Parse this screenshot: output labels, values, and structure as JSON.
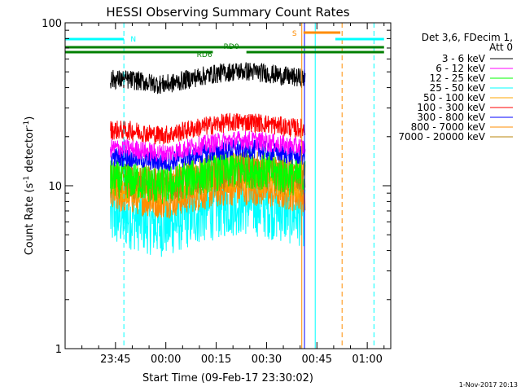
{
  "chart_data": {
    "type": "line",
    "title": "HESSI Observing Summary Count Rates",
    "xlabel": "Start Time (09-Feb-17 23:30:02)",
    "ylabel_main": "Count Rate (s",
    "ylabel_sup": "-1",
    "ylabel_mid": " detector",
    "ylabel_end": ")",
    "yscale": "log",
    "ylim": [
      1,
      100
    ],
    "y_ticks": [
      "1",
      "10",
      "100"
    ],
    "x_ticks": [
      "23:45",
      "00:00",
      "00:15",
      "00:30",
      "00:45",
      "01:00"
    ],
    "x_tick_minutes": [
      15,
      30,
      45,
      60,
      75,
      90
    ],
    "xlim_minutes": [
      0,
      97
    ],
    "data_start_minutes": 13.5,
    "data_end_minutes": 71.5,
    "legend_header": [
      "Det 3,6, FDecim 1,",
      "Att 0"
    ],
    "series": [
      {
        "name": "3 - 6 keV",
        "color": "#000000",
        "level": 45,
        "amp": 0.12,
        "noise": 0.06
      },
      {
        "name": "6 - 12 keV",
        "color": "#ff00ff",
        "level": 17,
        "amp": 0.12,
        "noise": 0.06
      },
      {
        "name": "12 - 25 keV",
        "color": "#00ff00",
        "level": 11,
        "amp": 0.15,
        "noise": 0.12
      },
      {
        "name": "25 - 50 keV",
        "color": "#00ffff",
        "level": 6.5,
        "amp": 0.2,
        "noise": 0.2
      },
      {
        "name": "50 - 100 keV",
        "color": "#ffa500",
        "level": 10.5,
        "amp": 0.14,
        "noise": 0.12
      },
      {
        "name": "100 - 300 keV",
        "color": "#ff0000",
        "level": 22,
        "amp": 0.12,
        "noise": 0.06
      },
      {
        "name": "300 - 800 keV",
        "color": "#0000ff",
        "level": 15,
        "amp": 0.12,
        "noise": 0.06
      },
      {
        "name": "800 - 7000 keV",
        "color": "#ff8c00",
        "level": 8.5,
        "amp": 0.12,
        "noise": 0.1
      },
      {
        "name": "7000 - 20000 keV",
        "color": "#b8860b",
        "level": 11,
        "amp": 0.14,
        "noise": 0.12
      }
    ],
    "flags": [
      {
        "label": "N",
        "color": "#00ffff",
        "segments": [
          [
            0,
            17.5
          ],
          [
            80.5,
            95
          ]
        ]
      },
      {
        "label": "RD0",
        "color": "#008000",
        "segments": [
          [
            0,
            95
          ]
        ]
      },
      {
        "label": "RD6",
        "color": "#008000",
        "segments": [
          [
            0,
            44
          ],
          [
            54,
            95
          ]
        ]
      },
      {
        "label": "S",
        "color": "#ff8c00",
        "segments": [
          [
            71,
            82
          ]
        ]
      }
    ],
    "vertical_lines": [
      {
        "color": "#00ffff",
        "style": "dashed",
        "minute": 17.5
      },
      {
        "color": "#00ffff",
        "style": "solid",
        "minute": 74.5
      },
      {
        "color": "#ff8c00",
        "style": "dashed",
        "minute": 82.5
      },
      {
        "color": "#00ffff",
        "style": "dashed",
        "minute": 92
      },
      {
        "color": "#ff8c00",
        "style": "solid",
        "minute": 70.5
      },
      {
        "color": "#0000ff",
        "style": "solid",
        "minute": 71.3
      }
    ]
  },
  "footer": {
    "timestamp": "1-Nov-2017 20:13"
  }
}
